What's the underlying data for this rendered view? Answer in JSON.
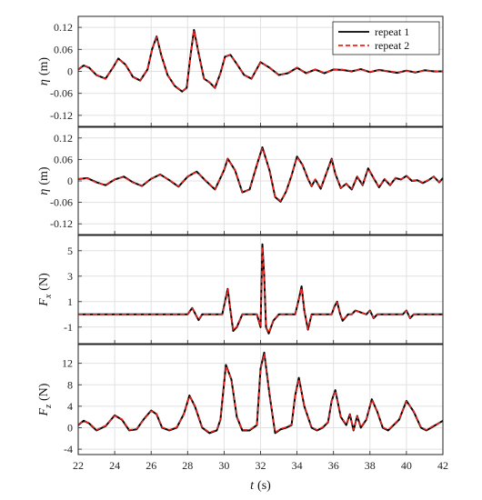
{
  "chart_data": [
    {
      "type": "line",
      "ylabel": "η (m)",
      "ylabel_main": "η",
      "ylabel_sub": "",
      "ylabel_unit": "(m)",
      "xlim": [
        22,
        42
      ],
      "ylim": [
        -0.15,
        0.15
      ],
      "yticks": [
        -0.12,
        -0.06,
        0,
        0.06,
        0.12
      ],
      "ytick_labels": [
        "-0.12",
        "-0.06",
        "0",
        "0.06",
        "0.12"
      ],
      "grid": true,
      "legend": {
        "position": "top-right",
        "entries": [
          "repeat 1",
          "repeat 2"
        ]
      },
      "series": [
        {
          "name": "repeat 1",
          "color": "#000000",
          "style": "solid",
          "x": [
            22,
            22.3,
            22.6,
            23,
            23.5,
            23.9,
            24.2,
            24.6,
            25,
            25.4,
            25.8,
            26.05,
            26.3,
            26.55,
            26.9,
            27.3,
            27.7,
            27.95,
            28.15,
            28.35,
            28.6,
            28.9,
            29.2,
            29.5,
            29.8,
            30.05,
            30.35,
            30.7,
            31.1,
            31.5,
            32,
            32.5,
            33,
            33.5,
            34,
            34.5,
            35,
            35.5,
            36,
            36.5,
            37,
            37.5,
            38,
            38.5,
            39,
            39.5,
            40,
            40.5,
            41,
            41.5,
            42
          ],
          "y": [
            0.005,
            0.016,
            0.01,
            -0.01,
            -0.02,
            0.01,
            0.035,
            0.018,
            -0.015,
            -0.025,
            0.005,
            0.06,
            0.095,
            0.045,
            -0.01,
            -0.04,
            -0.055,
            -0.045,
            0.04,
            0.113,
            0.05,
            -0.02,
            -0.03,
            -0.045,
            -0.005,
            0.04,
            0.045,
            0.02,
            -0.01,
            -0.02,
            0.025,
            0.01,
            -0.01,
            -0.005,
            0.01,
            -0.005,
            0.005,
            -0.005,
            0.005,
            0.004,
            0.0,
            0.006,
            -0.002,
            0.004,
            0.0,
            -0.004,
            0.002,
            -0.003,
            0.003,
            0.0,
            0.0
          ]
        },
        {
          "name": "repeat 2",
          "color": "#e8251f",
          "style": "dashed",
          "x": [
            22,
            22.3,
            22.6,
            23,
            23.5,
            23.9,
            24.2,
            24.6,
            25,
            25.4,
            25.8,
            26.05,
            26.3,
            26.55,
            26.9,
            27.3,
            27.7,
            27.95,
            28.15,
            28.35,
            28.6,
            28.9,
            29.2,
            29.5,
            29.8,
            30.05,
            30.35,
            30.7,
            31.1,
            31.5,
            32,
            32.5,
            33,
            33.5,
            34,
            34.5,
            35,
            35.5,
            36,
            36.5,
            37,
            37.5,
            38,
            38.5,
            39,
            39.5,
            40,
            40.5,
            41,
            41.5,
            42
          ],
          "y": [
            0.006,
            0.015,
            0.011,
            -0.009,
            -0.021,
            0.011,
            0.034,
            0.019,
            -0.016,
            -0.024,
            0.006,
            0.061,
            0.093,
            0.046,
            -0.011,
            -0.039,
            -0.054,
            -0.046,
            0.041,
            0.111,
            0.051,
            -0.021,
            -0.029,
            -0.044,
            -0.006,
            0.041,
            0.044,
            0.021,
            -0.011,
            -0.019,
            0.024,
            0.011,
            -0.011,
            -0.004,
            0.011,
            -0.006,
            0.006,
            -0.004,
            0.004,
            0.005,
            0.001,
            0.005,
            -0.001,
            0.003,
            0.001,
            -0.003,
            0.001,
            -0.002,
            0.002,
            0.001,
            0.0
          ]
        }
      ]
    },
    {
      "type": "line",
      "ylabel": "η (m)",
      "ylabel_main": "η",
      "ylabel_sub": "",
      "ylabel_unit": "(m)",
      "xlim": [
        22,
        42
      ],
      "ylim": [
        -0.15,
        0.15
      ],
      "yticks": [
        -0.12,
        -0.06,
        0,
        0.06,
        0.12
      ],
      "ytick_labels": [
        "-0.12",
        "-0.06",
        "0",
        "0.06",
        "0.12"
      ],
      "grid": true,
      "series": [
        {
          "name": "repeat 1",
          "color": "#000000",
          "style": "solid",
          "x": [
            22,
            22.5,
            23,
            23.5,
            24,
            24.5,
            25,
            25.5,
            26,
            26.5,
            27,
            27.5,
            28,
            28.5,
            29,
            29.5,
            30,
            30.2,
            30.6,
            31,
            31.4,
            31.8,
            32.1,
            32.5,
            32.8,
            33.1,
            33.4,
            33.7,
            34,
            34.3,
            34.6,
            34.8,
            35,
            35.3,
            35.6,
            35.9,
            36.1,
            36.4,
            36.7,
            37,
            37.3,
            37.6,
            37.9,
            38.2,
            38.5,
            38.8,
            39.1,
            39.4,
            39.7,
            40,
            40.3,
            40.6,
            40.9,
            41.2,
            41.5,
            41.8,
            42
          ],
          "y": [
            0.005,
            0.008,
            -0.004,
            -0.012,
            0.004,
            0.012,
            -0.004,
            -0.014,
            0.006,
            0.018,
            0.002,
            -0.016,
            0.012,
            0.026,
            0.0,
            -0.024,
            0.03,
            0.062,
            0.03,
            -0.032,
            -0.024,
            0.045,
            0.094,
            0.028,
            -0.045,
            -0.058,
            -0.03,
            0.015,
            0.068,
            0.045,
            0.006,
            -0.015,
            0.004,
            -0.022,
            0.02,
            0.062,
            0.02,
            -0.02,
            -0.008,
            -0.024,
            0.012,
            -0.012,
            0.035,
            0.008,
            -0.018,
            0.005,
            -0.012,
            0.008,
            0.004,
            0.014,
            0.0,
            0.002,
            -0.006,
            0.002,
            0.012,
            -0.004,
            0.008
          ]
        },
        {
          "name": "repeat 2",
          "color": "#e8251f",
          "style": "dashed",
          "x": [
            22,
            22.5,
            23,
            23.5,
            24,
            24.5,
            25,
            25.5,
            26,
            26.5,
            27,
            27.5,
            28,
            28.5,
            29,
            29.5,
            30,
            30.2,
            30.6,
            31,
            31.4,
            31.8,
            32.1,
            32.5,
            32.8,
            33.1,
            33.4,
            33.7,
            34,
            34.3,
            34.6,
            34.8,
            35,
            35.3,
            35.6,
            35.9,
            36.1,
            36.4,
            36.7,
            37,
            37.3,
            37.6,
            37.9,
            38.2,
            38.5,
            38.8,
            39.1,
            39.4,
            39.7,
            40,
            40.3,
            40.6,
            40.9,
            41.2,
            41.5,
            41.8,
            42
          ],
          "y": [
            0.006,
            0.007,
            -0.005,
            -0.011,
            0.005,
            0.011,
            -0.005,
            -0.013,
            0.007,
            0.017,
            0.003,
            -0.015,
            0.013,
            0.025,
            0.001,
            -0.023,
            0.031,
            0.061,
            0.031,
            -0.031,
            -0.025,
            0.046,
            0.092,
            0.029,
            -0.044,
            -0.056,
            -0.031,
            0.016,
            0.066,
            0.044,
            0.007,
            -0.014,
            0.005,
            -0.021,
            0.021,
            0.06,
            0.021,
            -0.019,
            -0.009,
            -0.022,
            0.013,
            -0.011,
            0.034,
            0.009,
            -0.017,
            0.006,
            -0.011,
            0.009,
            0.005,
            0.013,
            0.001,
            0.003,
            -0.005,
            0.003,
            0.011,
            -0.003,
            0.009
          ]
        }
      ]
    },
    {
      "type": "line",
      "ylabel": "Fx (N)",
      "ylabel_main": "F",
      "ylabel_sub": "x",
      "ylabel_unit": "(N)",
      "xlim": [
        22,
        42
      ],
      "ylim": [
        -2.3,
        6.2
      ],
      "yticks": [
        -1,
        1,
        3,
        5
      ],
      "ytick_labels": [
        "-1",
        "1",
        "3",
        "5"
      ],
      "grid": true,
      "series": [
        {
          "name": "repeat 1",
          "color": "#000000",
          "style": "solid",
          "x": [
            22,
            24,
            26,
            28,
            28.1,
            28.25,
            28.4,
            28.6,
            28.8,
            29.5,
            29.9,
            30.05,
            30.2,
            30.35,
            30.5,
            30.7,
            31.0,
            31.5,
            31.8,
            32.0,
            32.1,
            32.2,
            32.3,
            32.45,
            32.7,
            33.0,
            33.5,
            33.9,
            34.1,
            34.25,
            34.4,
            34.6,
            34.8,
            35.5,
            35.9,
            36.05,
            36.2,
            36.35,
            36.5,
            36.8,
            37.0,
            37.2,
            37.8,
            38.0,
            38.2,
            38.4,
            39.8,
            40.0,
            40.2,
            40.4,
            42
          ],
          "y": [
            0.0,
            0.0,
            0.0,
            0.0,
            0.2,
            0.5,
            0.1,
            -0.45,
            0.0,
            0.0,
            0.0,
            1.0,
            2.0,
            0.3,
            -1.3,
            -1.0,
            0.0,
            0.0,
            0.0,
            -1.0,
            5.5,
            3.0,
            -1.0,
            -1.5,
            -0.5,
            0.0,
            0.0,
            0.0,
            1.2,
            2.2,
            0.3,
            -1.2,
            0.0,
            0.0,
            0.0,
            0.6,
            1.0,
            0.1,
            -0.5,
            0.0,
            0.0,
            0.3,
            0.0,
            0.3,
            -0.3,
            0.0,
            0.0,
            0.3,
            -0.3,
            0.0,
            0.0
          ]
        },
        {
          "name": "repeat 2",
          "color": "#e8251f",
          "style": "dashed",
          "x": [
            22,
            24,
            26,
            28,
            28.1,
            28.25,
            28.4,
            28.6,
            28.8,
            29.5,
            29.9,
            30.05,
            30.2,
            30.35,
            30.5,
            30.7,
            31.0,
            31.5,
            31.8,
            32.0,
            32.1,
            32.2,
            32.3,
            32.45,
            32.7,
            33.0,
            33.5,
            33.9,
            34.1,
            34.25,
            34.4,
            34.6,
            34.8,
            35.5,
            35.9,
            36.05,
            36.2,
            36.35,
            36.5,
            36.8,
            37.0,
            37.2,
            37.8,
            38.0,
            38.2,
            38.4,
            39.8,
            40.0,
            40.2,
            40.4,
            42
          ],
          "y": [
            0.0,
            0.0,
            0.0,
            0.0,
            0.18,
            0.48,
            0.12,
            -0.42,
            0.0,
            0.0,
            0.0,
            0.95,
            1.95,
            0.35,
            -1.25,
            -0.95,
            0.0,
            0.0,
            0.0,
            -0.95,
            5.3,
            3.1,
            -0.95,
            -1.45,
            -0.45,
            0.0,
            0.0,
            0.0,
            1.15,
            2.1,
            0.35,
            -1.15,
            0.0,
            0.0,
            0.0,
            0.55,
            0.95,
            0.15,
            -0.45,
            0.0,
            0.0,
            0.28,
            0.0,
            0.28,
            -0.28,
            0.0,
            0.0,
            0.28,
            -0.28,
            0.0,
            0.0
          ]
        }
      ]
    },
    {
      "type": "line",
      "ylabel": "Fz (N)",
      "ylabel_main": "F",
      "ylabel_sub": "z",
      "ylabel_unit": "(N)",
      "xlim": [
        22,
        42
      ],
      "ylim": [
        -5,
        15.5
      ],
      "yticks": [
        -4,
        0,
        4,
        8,
        12
      ],
      "ytick_labels": [
        "-4",
        "0",
        "4",
        "8",
        "12"
      ],
      "grid": true,
      "xticks": [
        22,
        24,
        26,
        28,
        30,
        32,
        34,
        36,
        38,
        40,
        42
      ],
      "xtick_labels": [
        "22",
        "24",
        "26",
        "28",
        "30",
        "32",
        "34",
        "36",
        "38",
        "40",
        "42"
      ],
      "xlabel": "t (s)",
      "xlabel_main": "t",
      "xlabel_unit": "(s)",
      "series": [
        {
          "name": "repeat 1",
          "color": "#000000",
          "style": "solid",
          "x": [
            22,
            22.3,
            22.6,
            23,
            23.5,
            24,
            24.4,
            24.8,
            25.2,
            25.6,
            26,
            26.3,
            26.6,
            27,
            27.4,
            27.8,
            28.1,
            28.4,
            28.8,
            29.2,
            29.6,
            29.8,
            30.1,
            30.4,
            30.7,
            31,
            31.4,
            31.8,
            32.0,
            32.2,
            32.5,
            32.8,
            33.1,
            33.4,
            33.7,
            33.9,
            34.1,
            34.4,
            34.8,
            35.1,
            35.4,
            35.7,
            35.9,
            36.1,
            36.4,
            36.7,
            36.9,
            37.1,
            37.3,
            37.5,
            37.8,
            38.1,
            38.4,
            38.7,
            39.0,
            39.3,
            39.6,
            40.0,
            40.4,
            40.8,
            41.1,
            41.5,
            42
          ],
          "y": [
            0.5,
            1.3,
            0.8,
            -0.5,
            0.3,
            2.3,
            1.5,
            -0.5,
            -0.3,
            1.6,
            3.2,
            2.5,
            0.0,
            -0.5,
            0.0,
            2.6,
            6.0,
            4.0,
            0.0,
            -1.0,
            -0.5,
            1.5,
            11.7,
            9.0,
            2.0,
            -0.5,
            -0.5,
            0.5,
            11.0,
            14.0,
            6.0,
            -1.0,
            -0.3,
            0.0,
            0.5,
            6.0,
            9.3,
            4.0,
            0.0,
            -0.5,
            0.0,
            1.0,
            5.0,
            7.0,
            2.0,
            0.5,
            2.5,
            -0.5,
            2.2,
            0.0,
            1.5,
            5.3,
            3.0,
            0.0,
            -0.5,
            0.5,
            1.5,
            5.0,
            3.0,
            0.0,
            -0.5,
            0.3,
            1.3
          ]
        },
        {
          "name": "repeat 2",
          "color": "#e8251f",
          "style": "dashed",
          "x": [
            22,
            22.3,
            22.6,
            23,
            23.5,
            24,
            24.4,
            24.8,
            25.2,
            25.6,
            26,
            26.3,
            26.6,
            27,
            27.4,
            27.8,
            28.1,
            28.4,
            28.8,
            29.2,
            29.6,
            29.8,
            30.1,
            30.4,
            30.7,
            31,
            31.4,
            31.8,
            32.0,
            32.2,
            32.5,
            32.8,
            33.1,
            33.4,
            33.7,
            33.9,
            34.1,
            34.4,
            34.8,
            35.1,
            35.4,
            35.7,
            35.9,
            36.1,
            36.4,
            36.7,
            36.9,
            37.1,
            37.3,
            37.5,
            37.8,
            38.1,
            38.4,
            38.7,
            39.0,
            39.3,
            39.6,
            40.0,
            40.4,
            40.8,
            41.1,
            41.5,
            42
          ],
          "y": [
            0.6,
            1.2,
            0.9,
            -0.4,
            0.4,
            2.2,
            1.6,
            -0.4,
            -0.2,
            1.5,
            3.1,
            2.6,
            0.1,
            -0.4,
            0.1,
            2.5,
            5.9,
            4.1,
            0.1,
            -0.9,
            -0.4,
            1.6,
            11.5,
            9.1,
            2.1,
            -0.4,
            -0.4,
            0.6,
            10.8,
            13.8,
            6.1,
            -0.9,
            -0.2,
            0.1,
            0.6,
            5.9,
            9.1,
            4.1,
            0.1,
            -0.4,
            0.1,
            1.1,
            4.9,
            6.9,
            2.1,
            0.6,
            2.4,
            -0.4,
            2.1,
            0.1,
            1.6,
            5.2,
            3.1,
            0.1,
            -0.4,
            0.6,
            1.6,
            4.9,
            3.1,
            0.1,
            -0.4,
            0.4,
            1.2
          ]
        }
      ]
    }
  ]
}
